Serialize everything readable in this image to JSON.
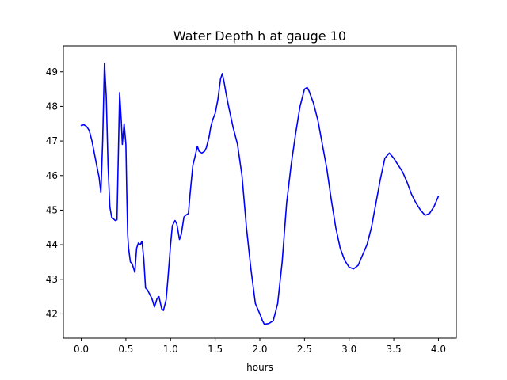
{
  "chart_data": {
    "type": "line",
    "title": "Water Depth h at gauge 10",
    "xlabel": "hours",
    "ylabel": "",
    "xlim": [
      -0.2,
      4.2
    ],
    "ylim": [
      41.3,
      49.75
    ],
    "xticks": [
      0.0,
      0.5,
      1.0,
      1.5,
      2.0,
      2.5,
      3.0,
      3.5,
      4.0
    ],
    "xtick_labels": [
      "0.0",
      "0.5",
      "1.0",
      "1.5",
      "2.0",
      "2.5",
      "3.0",
      "3.5",
      "4.0"
    ],
    "yticks": [
      42,
      43,
      44,
      45,
      46,
      47,
      48,
      49
    ],
    "ytick_labels": [
      "42",
      "43",
      "44",
      "45",
      "46",
      "47",
      "48",
      "49"
    ],
    "grid": false,
    "legend": "none",
    "series": [
      {
        "color": "#0000ff",
        "x": [
          0.0,
          0.03,
          0.06,
          0.09,
          0.12,
          0.15,
          0.18,
          0.2,
          0.22,
          0.24,
          0.26,
          0.28,
          0.3,
          0.32,
          0.34,
          0.36,
          0.38,
          0.4,
          0.43,
          0.45,
          0.46,
          0.48,
          0.5,
          0.51,
          0.52,
          0.53,
          0.55,
          0.57,
          0.6,
          0.62,
          0.64,
          0.66,
          0.68,
          0.7,
          0.72,
          0.74,
          0.76,
          0.79,
          0.82,
          0.85,
          0.87,
          0.9,
          0.92,
          0.95,
          0.97,
          1.0,
          1.02,
          1.05,
          1.07,
          1.1,
          1.12,
          1.15,
          1.17,
          1.2,
          1.22,
          1.25,
          1.27,
          1.3,
          1.32,
          1.35,
          1.38,
          1.4,
          1.43,
          1.45,
          1.47,
          1.5,
          1.53,
          1.56,
          1.58,
          1.6,
          1.62,
          1.65,
          1.7,
          1.75,
          1.8,
          1.85,
          1.9,
          1.95,
          2.0,
          2.03,
          2.05,
          2.1,
          2.15,
          2.2,
          2.25,
          2.3,
          2.35,
          2.4,
          2.45,
          2.5,
          2.53,
          2.55,
          2.6,
          2.65,
          2.7,
          2.75,
          2.8,
          2.85,
          2.9,
          2.95,
          3.0,
          3.05,
          3.1,
          3.15,
          3.2,
          3.25,
          3.3,
          3.35,
          3.4,
          3.45,
          3.5,
          3.55,
          3.6,
          3.65,
          3.7,
          3.75,
          3.8,
          3.85,
          3.9,
          3.95,
          4.0
        ],
        "y": [
          47.45,
          47.47,
          47.42,
          47.3,
          47.0,
          46.6,
          46.2,
          45.95,
          45.5,
          47.0,
          49.25,
          48.3,
          46.3,
          45.1,
          44.8,
          44.75,
          44.7,
          44.72,
          48.4,
          47.5,
          46.9,
          47.5,
          46.9,
          45.5,
          44.3,
          43.9,
          43.5,
          43.45,
          43.2,
          43.9,
          44.05,
          44.0,
          44.1,
          43.6,
          42.75,
          42.7,
          42.6,
          42.45,
          42.2,
          42.45,
          42.5,
          42.15,
          42.1,
          42.4,
          43.0,
          44.0,
          44.55,
          44.7,
          44.6,
          44.15,
          44.3,
          44.8,
          44.85,
          44.9,
          45.5,
          46.3,
          46.5,
          46.85,
          46.7,
          46.65,
          46.7,
          46.8,
          47.1,
          47.4,
          47.6,
          47.8,
          48.2,
          48.8,
          48.95,
          48.7,
          48.4,
          48.0,
          47.4,
          46.9,
          46.0,
          44.5,
          43.3,
          42.3,
          42.0,
          41.8,
          41.7,
          41.72,
          41.8,
          42.3,
          43.5,
          45.2,
          46.3,
          47.2,
          48.0,
          48.5,
          48.55,
          48.45,
          48.1,
          47.6,
          46.9,
          46.2,
          45.3,
          44.5,
          43.9,
          43.55,
          43.35,
          43.3,
          43.4,
          43.7,
          44.0,
          44.5,
          45.2,
          45.9,
          46.5,
          46.65,
          46.5,
          46.3,
          46.1,
          45.8,
          45.45,
          45.2,
          45.0,
          44.85,
          44.9,
          45.1,
          45.4
        ]
      }
    ]
  }
}
